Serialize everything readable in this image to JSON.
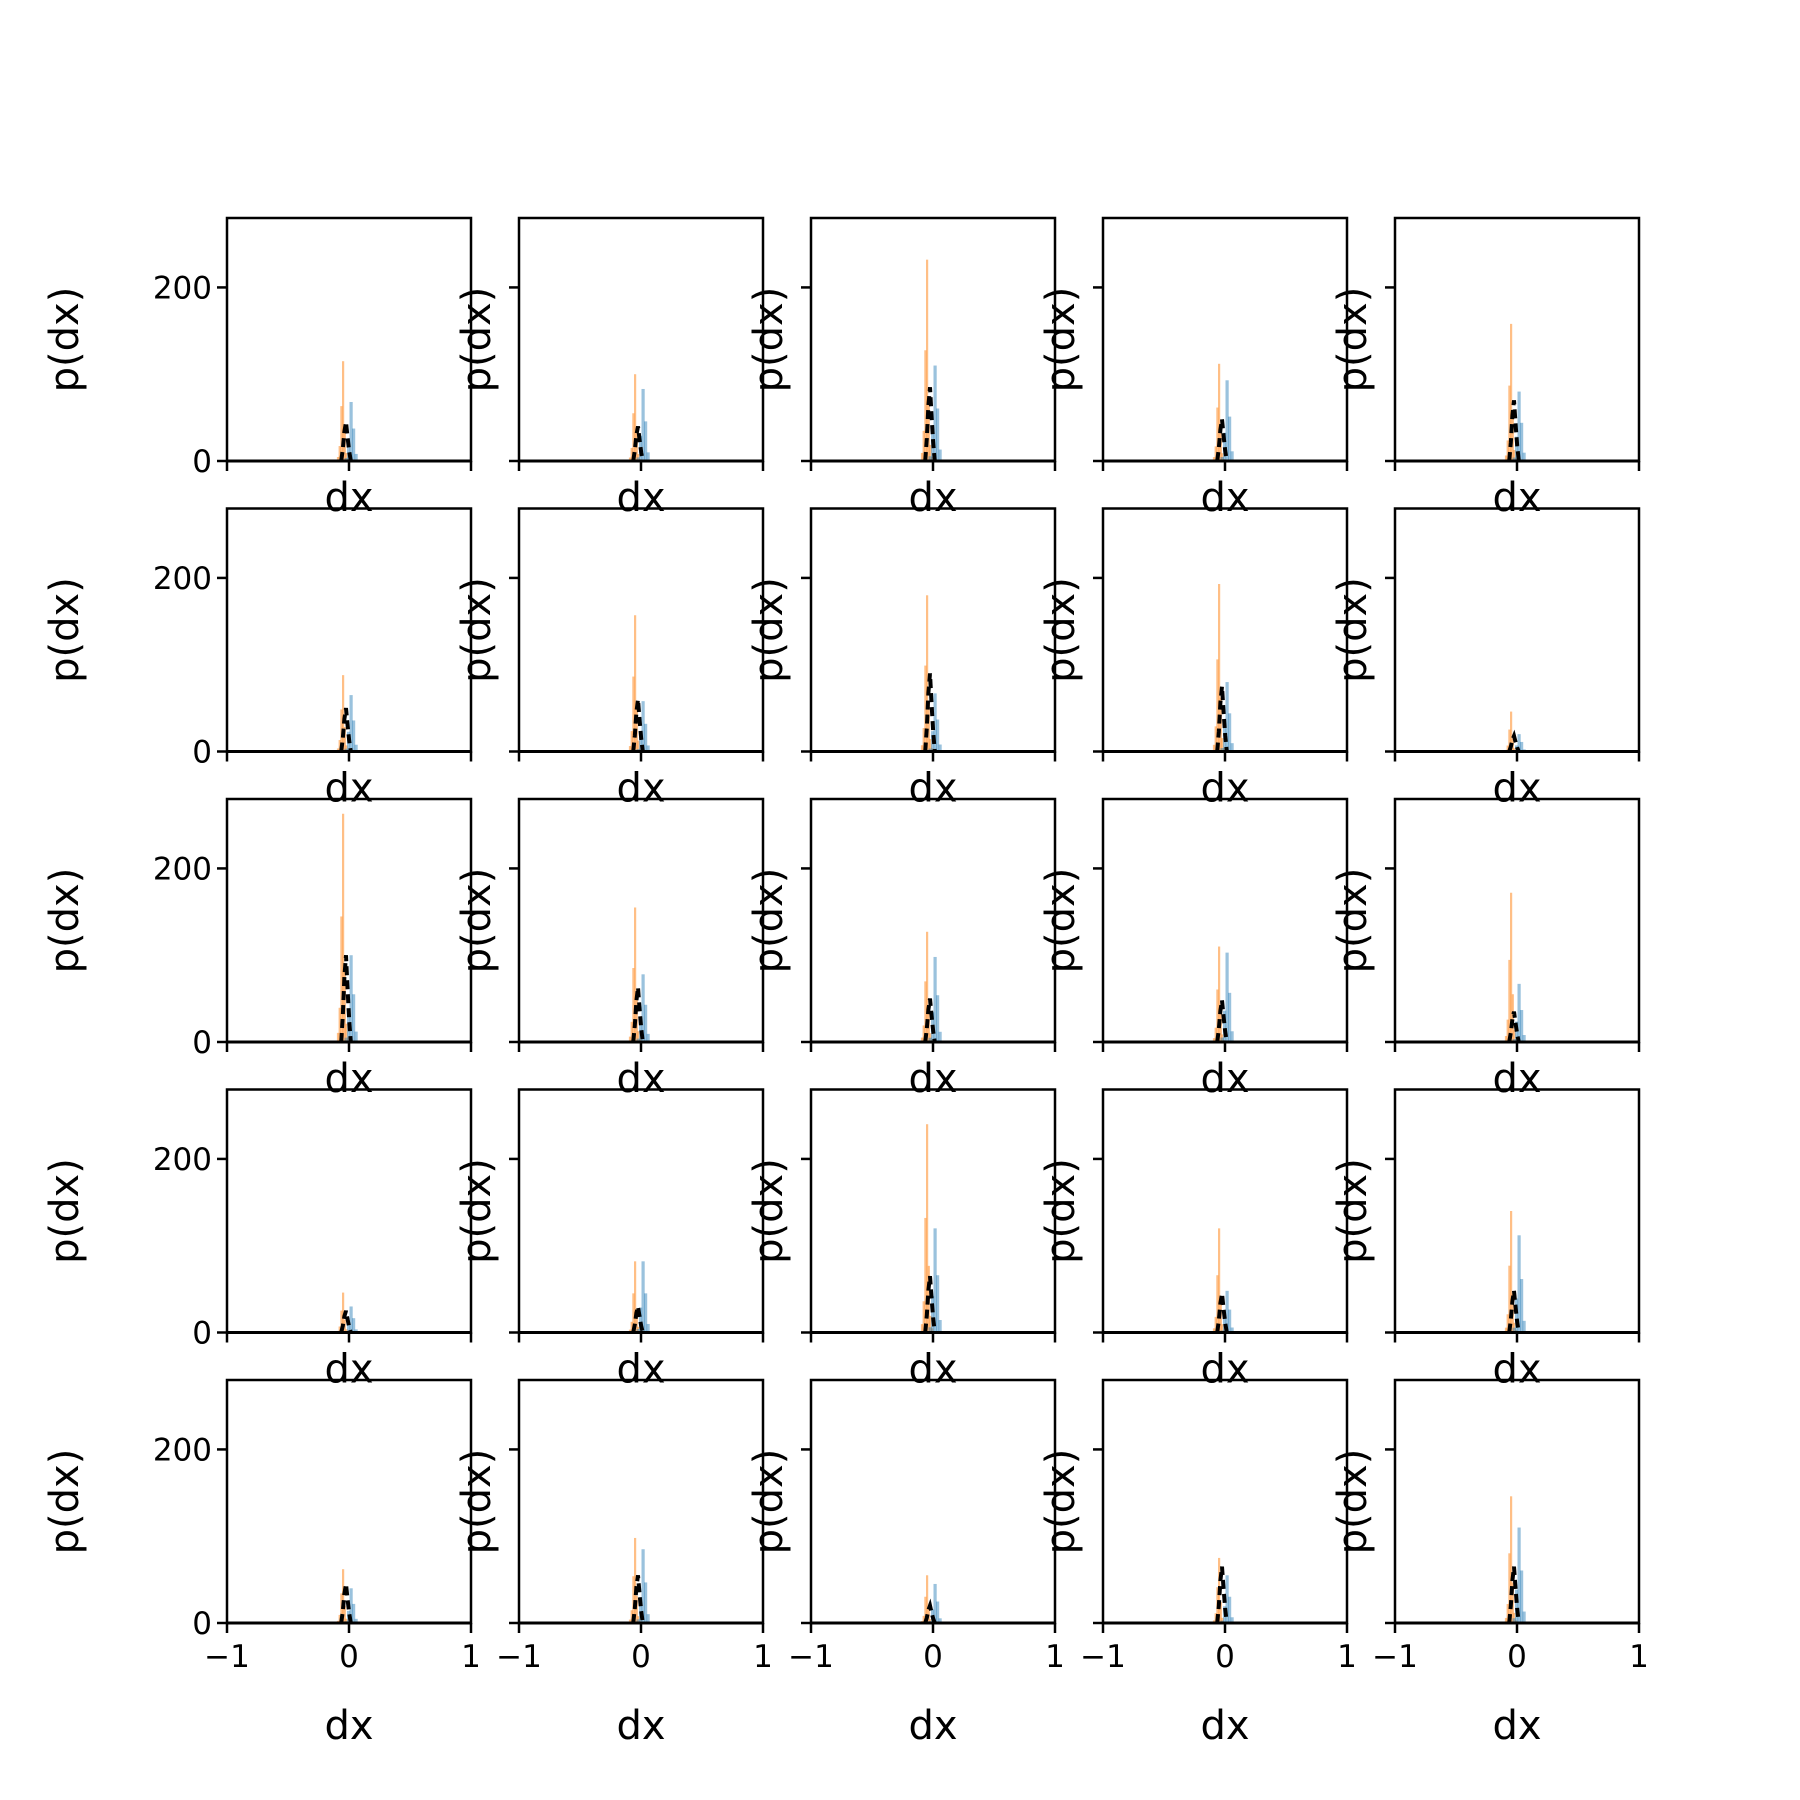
{
  "chart_data": {
    "type": "bar",
    "layout": "grid of 5 rows by 5 columns of histograms",
    "shared_axes": true,
    "xlabel": "dx",
    "ylabel": "p(dx)",
    "xlim": [
      -1,
      1
    ],
    "ylim": [
      0,
      280
    ],
    "x_ticks": [
      -1,
      0,
      1
    ],
    "x_tick_labels": [
      "−1",
      "0",
      "1"
    ],
    "y_ticks": [
      0,
      200
    ],
    "y_tick_labels": [
      "0",
      "200"
    ],
    "grid": false,
    "legend": "none",
    "colors": {
      "orange": "#ff7f0e",
      "blue": "#1f77b4",
      "black": "#000000"
    },
    "panels": [
      {
        "orange_peak": 115,
        "blue_peak": 68,
        "black_peak": 45
      },
      {
        "orange_peak": 100,
        "blue_peak": 83,
        "black_peak": 40
      },
      {
        "orange_peak": 232,
        "blue_peak": 110,
        "black_peak": 85
      },
      {
        "orange_peak": 112,
        "blue_peak": 93,
        "black_peak": 48
      },
      {
        "orange_peak": 158,
        "blue_peak": 80,
        "black_peak": 70
      },
      {
        "orange_peak": 88,
        "blue_peak": 65,
        "black_peak": 50
      },
      {
        "orange_peak": 157,
        "blue_peak": 58,
        "black_peak": 60
      },
      {
        "orange_peak": 180,
        "blue_peak": 67,
        "black_peak": 90
      },
      {
        "orange_peak": 193,
        "blue_peak": 80,
        "black_peak": 75
      },
      {
        "orange_peak": 46,
        "blue_peak": 20,
        "black_peak": 18
      },
      {
        "orange_peak": 263,
        "blue_peak": 100,
        "black_peak": 100
      },
      {
        "orange_peak": 155,
        "blue_peak": 78,
        "black_peak": 63
      },
      {
        "orange_peak": 127,
        "blue_peak": 98,
        "black_peak": 50
      },
      {
        "orange_peak": 110,
        "blue_peak": 103,
        "black_peak": 48
      },
      {
        "orange_peak": 172,
        "blue_peak": 67,
        "black_peak": 35
      },
      {
        "orange_peak": 46,
        "blue_peak": 30,
        "black_peak": 25
      },
      {
        "orange_peak": 82,
        "blue_peak": 82,
        "black_peak": 30
      },
      {
        "orange_peak": 240,
        "blue_peak": 120,
        "black_peak": 65
      },
      {
        "orange_peak": 120,
        "blue_peak": 48,
        "black_peak": 45
      },
      {
        "orange_peak": 140,
        "blue_peak": 112,
        "black_peak": 48
      },
      {
        "orange_peak": 62,
        "blue_peak": 40,
        "black_peak": 45
      },
      {
        "orange_peak": 98,
        "blue_peak": 85,
        "black_peak": 55
      },
      {
        "orange_peak": 55,
        "blue_peak": 45,
        "black_peak": 20
      },
      {
        "orange_peak": 75,
        "blue_peak": 55,
        "black_peak": 65
      },
      {
        "orange_peak": 146,
        "blue_peak": 110,
        "black_peak": 65
      }
    ]
  }
}
